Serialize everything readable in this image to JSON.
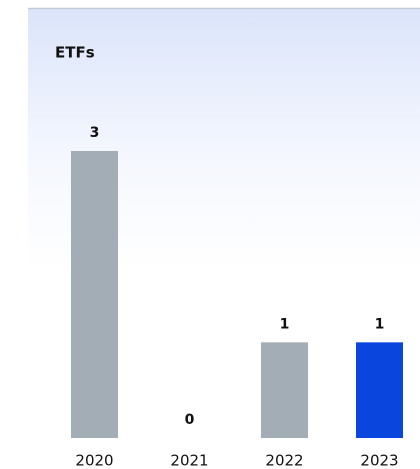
{
  "chart_data": {
    "type": "bar",
    "title": "ETFs",
    "categories": [
      "2020",
      "2021",
      "2022",
      "2023"
    ],
    "values": [
      3,
      0,
      1,
      1
    ],
    "colors": [
      "#a3adb5",
      "#a3adb5",
      "#a3adb5",
      "#0a45de"
    ]
  }
}
